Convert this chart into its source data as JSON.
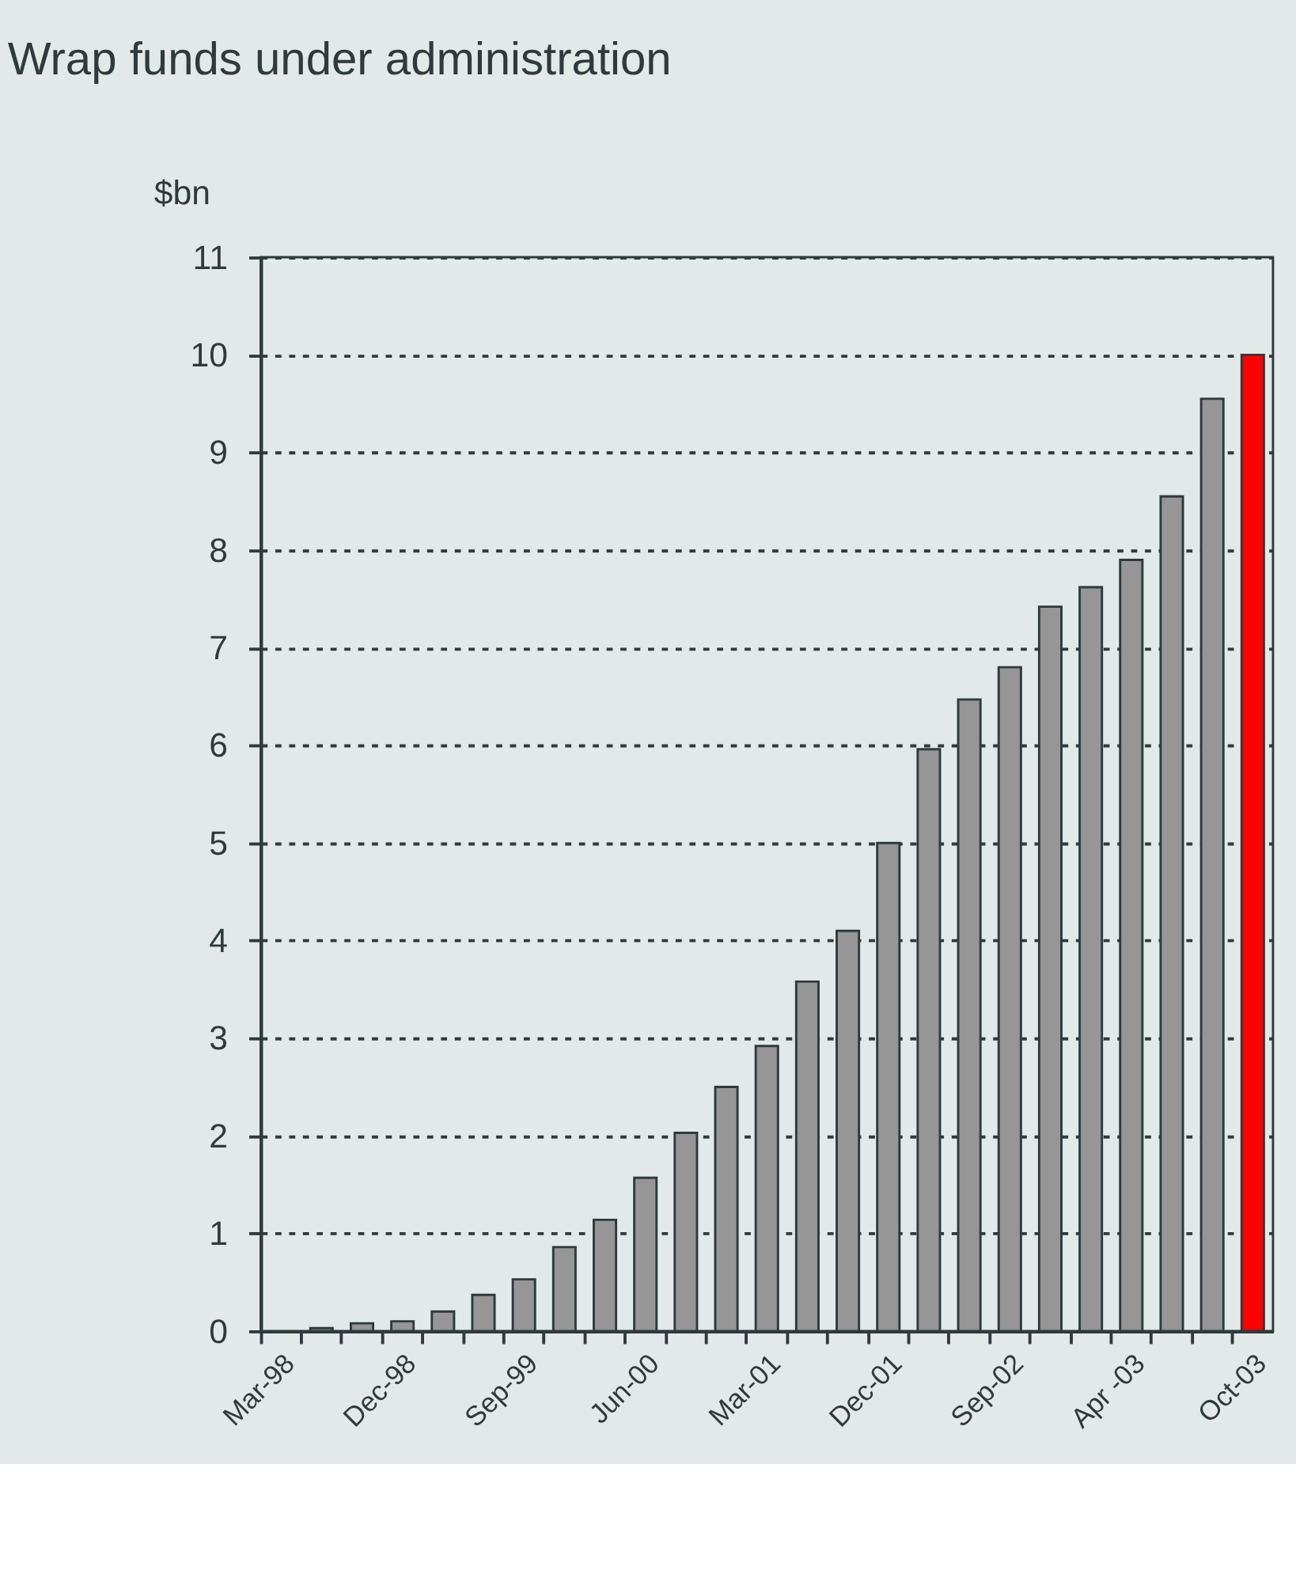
{
  "chart_data": {
    "type": "bar",
    "title": "Wrap funds under administration",
    "ylabel": "$bn",
    "categories": [
      "Mar-98",
      null,
      null,
      "Dec-98",
      null,
      null,
      "Sep-99",
      null,
      null,
      "Jun-00",
      null,
      null,
      "Mar-01",
      null,
      null,
      "Dec-01",
      null,
      null,
      "Sep-02",
      null,
      null,
      "Apr -03",
      null,
      null,
      "Oct-03"
    ],
    "values": [
      null,
      0.03,
      0.08,
      0.1,
      0.2,
      0.37,
      0.53,
      0.86,
      1.14,
      1.57,
      2.03,
      2.5,
      2.92,
      3.58,
      4.1,
      5.0,
      5.96,
      6.47,
      6.8,
      7.42,
      7.62,
      7.9,
      8.55,
      9.55,
      10.0
    ],
    "colors": [
      "#969696",
      "#969696",
      "#969696",
      "#969696",
      "#969696",
      "#969696",
      "#969696",
      "#969696",
      "#969696",
      "#969696",
      "#969696",
      "#969696",
      "#969696",
      "#969696",
      "#969696",
      "#969696",
      "#969696",
      "#969696",
      "#969696",
      "#969696",
      "#969696",
      "#969696",
      "#969696",
      "#969696",
      "#ff0000"
    ],
    "ylim": [
      0,
      11
    ],
    "yticks": [
      0,
      1,
      2,
      3,
      4,
      5,
      6,
      7,
      8,
      9,
      10,
      11
    ],
    "grid": "y"
  }
}
